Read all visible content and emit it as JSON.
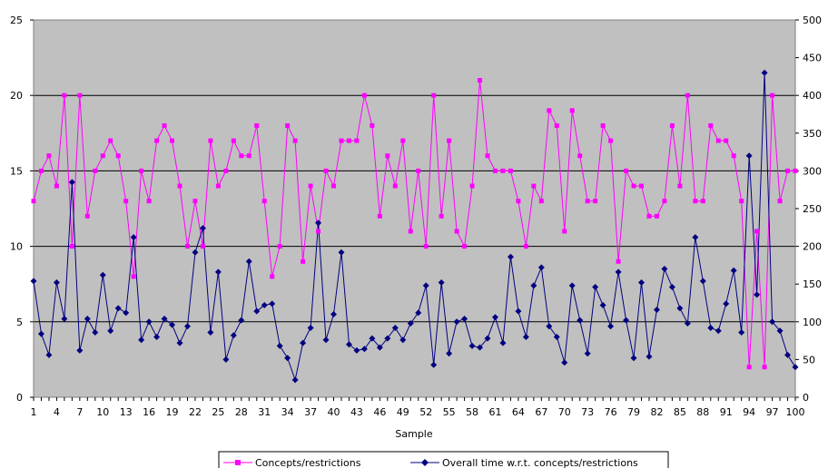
{
  "chart_data": {
    "type": "line",
    "xlabel": "Sample",
    "ylabel": "",
    "y2label": "",
    "ylim": [
      0,
      25
    ],
    "y2lim": [
      0,
      500
    ],
    "y_ticks": [
      "0",
      "5",
      "10",
      "15",
      "20",
      "25"
    ],
    "y2_ticks": [
      "0",
      "50",
      "100",
      "150",
      "200",
      "250",
      "300",
      "350",
      "400",
      "450",
      "500"
    ],
    "x_tick_labels": [
      "1",
      "4",
      "7",
      "10",
      "13",
      "16",
      "19",
      "22",
      "25",
      "28",
      "31",
      "34",
      "37",
      "40",
      "43",
      "46",
      "49",
      "52",
      "55",
      "58",
      "61",
      "64",
      "67",
      "70",
      "73",
      "76",
      "79",
      "82",
      "85",
      "88",
      "91",
      "94",
      "97",
      "100"
    ],
    "x": [
      1,
      2,
      3,
      4,
      5,
      6,
      7,
      8,
      9,
      10,
      11,
      12,
      13,
      14,
      15,
      16,
      17,
      18,
      19,
      20,
      21,
      22,
      23,
      24,
      25,
      26,
      27,
      28,
      29,
      30,
      31,
      32,
      33,
      34,
      35,
      36,
      37,
      38,
      39,
      40,
      41,
      42,
      43,
      44,
      45,
      46,
      47,
      48,
      49,
      50,
      51,
      52,
      53,
      54,
      55,
      56,
      57,
      58,
      59,
      60,
      61,
      62,
      63,
      64,
      65,
      66,
      67,
      68,
      69,
      70,
      71,
      72,
      73,
      74,
      75,
      76,
      77,
      78,
      79,
      80,
      81,
      82,
      83,
      84,
      85,
      86,
      87,
      88,
      89,
      90,
      91,
      92,
      93,
      94,
      95,
      96,
      97,
      98,
      99,
      100
    ],
    "grid": true,
    "plot_background": "#c0c0c0",
    "legend_position": "bottom",
    "series": [
      {
        "name": "Concepts/restrictions",
        "axis": "left",
        "color": "#ff00ff",
        "marker": "square",
        "values": [
          13,
          15,
          16,
          14,
          20,
          10,
          20,
          12,
          15,
          16,
          17,
          16,
          13,
          8,
          15,
          13,
          17,
          18,
          17,
          14,
          10,
          13,
          10,
          17,
          14,
          15,
          17,
          16,
          16,
          18,
          13,
          8,
          10,
          18,
          17,
          9,
          14,
          11,
          15,
          14,
          17,
          17,
          17,
          20,
          18,
          12,
          16,
          14,
          17,
          11,
          15,
          10,
          20,
          12,
          17,
          11,
          10,
          14,
          21,
          16,
          15,
          15,
          15,
          13,
          10,
          14,
          13,
          19,
          18,
          11,
          19,
          16,
          13,
          13,
          18,
          17,
          9,
          15,
          14,
          14,
          12,
          12,
          13,
          18,
          14,
          20,
          13,
          13,
          18,
          17,
          17,
          16,
          13,
          2,
          11,
          2,
          20,
          13,
          15,
          15
        ]
      },
      {
        "name": "Overall time w.r.t. concepts/restrictions",
        "axis": "right",
        "color": "#000080",
        "marker": "diamond",
        "values": [
          154,
          84,
          56,
          152,
          104,
          285,
          62,
          104,
          86,
          162,
          88,
          118,
          112,
          212,
          76,
          100,
          80,
          104,
          96,
          72,
          94,
          192,
          224,
          86,
          166,
          50,
          82,
          102,
          180,
          114,
          122,
          124,
          68,
          52,
          23,
          72,
          92,
          231,
          76,
          110,
          192,
          70,
          62,
          64,
          78,
          66,
          78,
          92,
          76,
          98,
          112,
          148,
          43,
          152,
          58,
          100,
          104,
          68,
          66,
          78,
          106,
          72,
          186,
          114,
          80,
          148,
          172,
          94,
          80,
          46,
          148,
          102,
          58,
          146,
          122,
          94,
          166,
          102,
          52,
          152,
          54,
          116,
          170,
          146,
          118,
          98,
          212,
          154,
          92,
          88,
          124,
          168,
          86,
          320,
          136,
          430,
          100,
          88,
          56,
          40
        ]
      }
    ]
  }
}
